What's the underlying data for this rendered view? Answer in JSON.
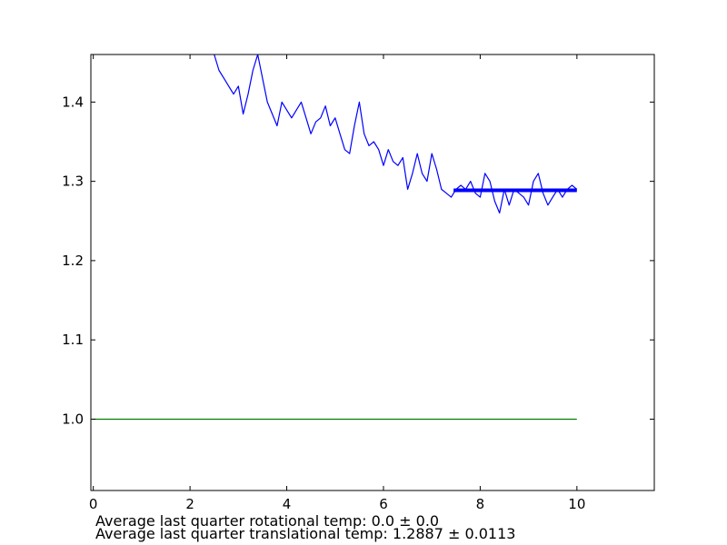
{
  "chart_data": {
    "type": "line",
    "title": "",
    "xlabel": "",
    "ylabel": "",
    "xlim": [
      -0.05,
      11.6
    ],
    "ylim": [
      0.91,
      1.46
    ],
    "xticks": [
      0,
      2,
      4,
      6,
      8,
      10
    ],
    "xtick_labels": [
      "0",
      "2",
      "4",
      "6",
      "8",
      "10"
    ],
    "yticks": [
      1.0,
      1.1,
      1.2,
      1.3,
      1.4
    ],
    "ytick_labels": [
      "1.0",
      "1.1",
      "1.2",
      "1.3",
      "1.4"
    ],
    "grid": false,
    "series": [
      {
        "color": "#0000ff",
        "stroke": "thin",
        "x": [
          2.5,
          2.6,
          2.7,
          2.8,
          2.9,
          3.0,
          3.1,
          3.2,
          3.3,
          3.4,
          3.5,
          3.6,
          3.7,
          3.8,
          3.9,
          4.0,
          4.1,
          4.2,
          4.3,
          4.4,
          4.5,
          4.6,
          4.7,
          4.8,
          4.9,
          5.0,
          5.1,
          5.2,
          5.3,
          5.4,
          5.5,
          5.6,
          5.7,
          5.8,
          5.9,
          6.0,
          6.1,
          6.2,
          6.3,
          6.4,
          6.5,
          6.6,
          6.7,
          6.8,
          6.9,
          7.0,
          7.1,
          7.2,
          7.3,
          7.4,
          7.5,
          7.6,
          7.7,
          7.8,
          7.9,
          8.0,
          8.1,
          8.2,
          8.3,
          8.4,
          8.5,
          8.6,
          8.7,
          8.8,
          8.9,
          9.0,
          9.1,
          9.2,
          9.3,
          9.4,
          9.5,
          9.6,
          9.7,
          9.8,
          9.9,
          10.0
        ],
        "y": [
          1.46,
          1.44,
          1.43,
          1.42,
          1.41,
          1.42,
          1.385,
          1.41,
          1.44,
          1.46,
          1.43,
          1.4,
          1.385,
          1.37,
          1.4,
          1.39,
          1.38,
          1.39,
          1.4,
          1.38,
          1.36,
          1.375,
          1.38,
          1.395,
          1.37,
          1.38,
          1.36,
          1.34,
          1.335,
          1.37,
          1.4,
          1.36,
          1.345,
          1.35,
          1.34,
          1.32,
          1.34,
          1.325,
          1.32,
          1.33,
          1.29,
          1.31,
          1.335,
          1.31,
          1.3,
          1.335,
          1.315,
          1.29,
          1.285,
          1.28,
          1.29,
          1.295,
          1.29,
          1.3,
          1.285,
          1.28,
          1.31,
          1.3,
          1.275,
          1.26,
          1.29,
          1.27,
          1.29,
          1.285,
          1.28,
          1.27,
          1.3,
          1.31,
          1.285,
          1.27,
          1.28,
          1.29,
          1.28,
          1.29,
          1.295,
          1.29
        ]
      },
      {
        "color": "#0000ff",
        "stroke": "thick",
        "x": [
          7.45,
          10.0
        ],
        "y": [
          1.2887,
          1.2887
        ]
      },
      {
        "color": "#008000",
        "stroke": "thin",
        "x": [
          0,
          10.0
        ],
        "y": [
          1.0,
          1.0
        ]
      }
    ]
  },
  "notes": {
    "rotational": "Average last quarter rotational temp: 0.0 ± 0.0",
    "translational": "Average last quarter translational temp: 1.2887 ± 0.0113"
  }
}
